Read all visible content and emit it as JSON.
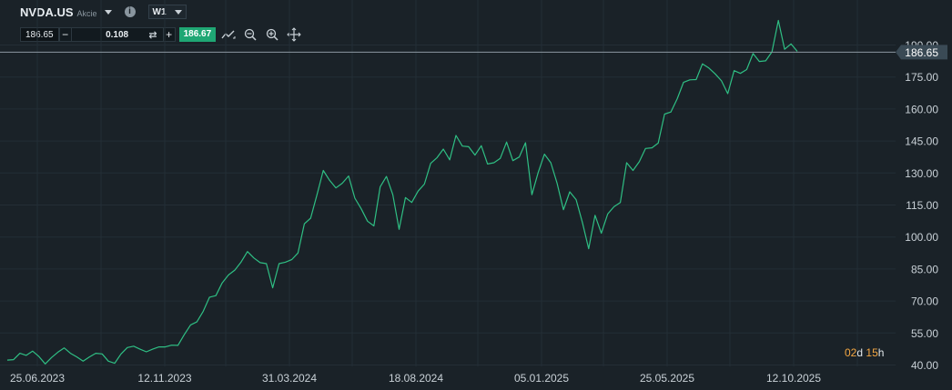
{
  "header": {
    "symbol": "NVDA.US",
    "asset_type": "Akcie",
    "info_icon": "i",
    "timeframe": "W1"
  },
  "trade_bar": {
    "bid": "186.65",
    "minus": "−",
    "volume": "0.108",
    "plus": "+",
    "ask": "186.67",
    "swap_icon": "⇄"
  },
  "tools": [
    "line-chart-icon",
    "zoom-out-icon",
    "zoom-in-icon",
    "move-icon"
  ],
  "countdown": {
    "days": "02",
    "days_unit": "d",
    "hours": "15",
    "hours_unit": "h"
  },
  "colors": {
    "background": "#1a2228",
    "line": "#2fbf84",
    "current_price": "#3a4a55",
    "countdown_accent": "#f4a742"
  },
  "chart_data": {
    "type": "line",
    "current_price": "186.65",
    "y_ticks": [
      "40.00",
      "55.00",
      "70.00",
      "85.00",
      "100.00",
      "115.00",
      "130.00",
      "145.00",
      "160.00",
      "175.00",
      "190.00"
    ],
    "x_ticks": [
      "25.06.2023",
      "12.11.2023",
      "31.03.2024",
      "18.08.2024",
      "05.01.2025",
      "25.05.2025",
      "12.10.2025"
    ],
    "ylim": [
      40,
      190
    ],
    "grid": true,
    "series": [
      {
        "values": [
          42.3,
          42.5,
          45.5,
          44.5,
          46.5,
          44.0,
          40.5,
          43.5,
          46.0,
          48.0,
          45.5,
          43.8,
          41.8,
          43.8,
          45.5,
          45.2,
          41.8,
          40.8,
          45.2,
          48.2,
          48.8,
          47.4,
          46.2,
          47.4,
          48.5,
          48.5,
          49.3,
          49.2,
          54.2,
          58.8,
          60.2,
          65.2,
          71.8,
          72.5,
          78.5,
          82.2,
          84.5,
          88.3,
          93.2,
          90.2,
          88.0,
          87.5,
          76.2,
          87.5,
          88.2,
          89.4,
          92.5,
          106.2,
          108.8,
          119.8,
          131.2,
          126.6,
          123.0,
          125.2,
          128.6,
          118.2,
          113.2,
          107.4,
          105.2,
          123.5,
          128.4,
          119.8,
          103.6,
          118.5,
          116.2,
          121.5,
          124.8,
          134.5,
          137.2,
          141.2,
          136.2,
          147.6,
          142.6,
          142.3,
          138.4,
          142.8,
          134.2,
          134.8,
          136.8,
          144.5,
          135.8,
          137.5,
          144.2,
          119.8,
          130.2,
          138.8,
          134.8,
          125.2,
          112.8,
          121.2,
          117.5,
          106.8,
          94.5,
          110.2,
          101.8,
          110.8,
          114.2,
          116.2,
          134.8,
          131.2,
          135.3,
          141.5,
          141.8,
          144.0,
          157.6,
          158.6,
          164.8,
          172.5,
          173.7,
          173.8,
          181.2,
          179.2,
          176.5,
          173.2,
          167.2,
          178.0,
          176.7,
          178.5,
          186.0,
          182.3,
          182.6,
          186.8,
          201.5,
          188.0,
          190.5,
          187.0
        ]
      }
    ]
  }
}
